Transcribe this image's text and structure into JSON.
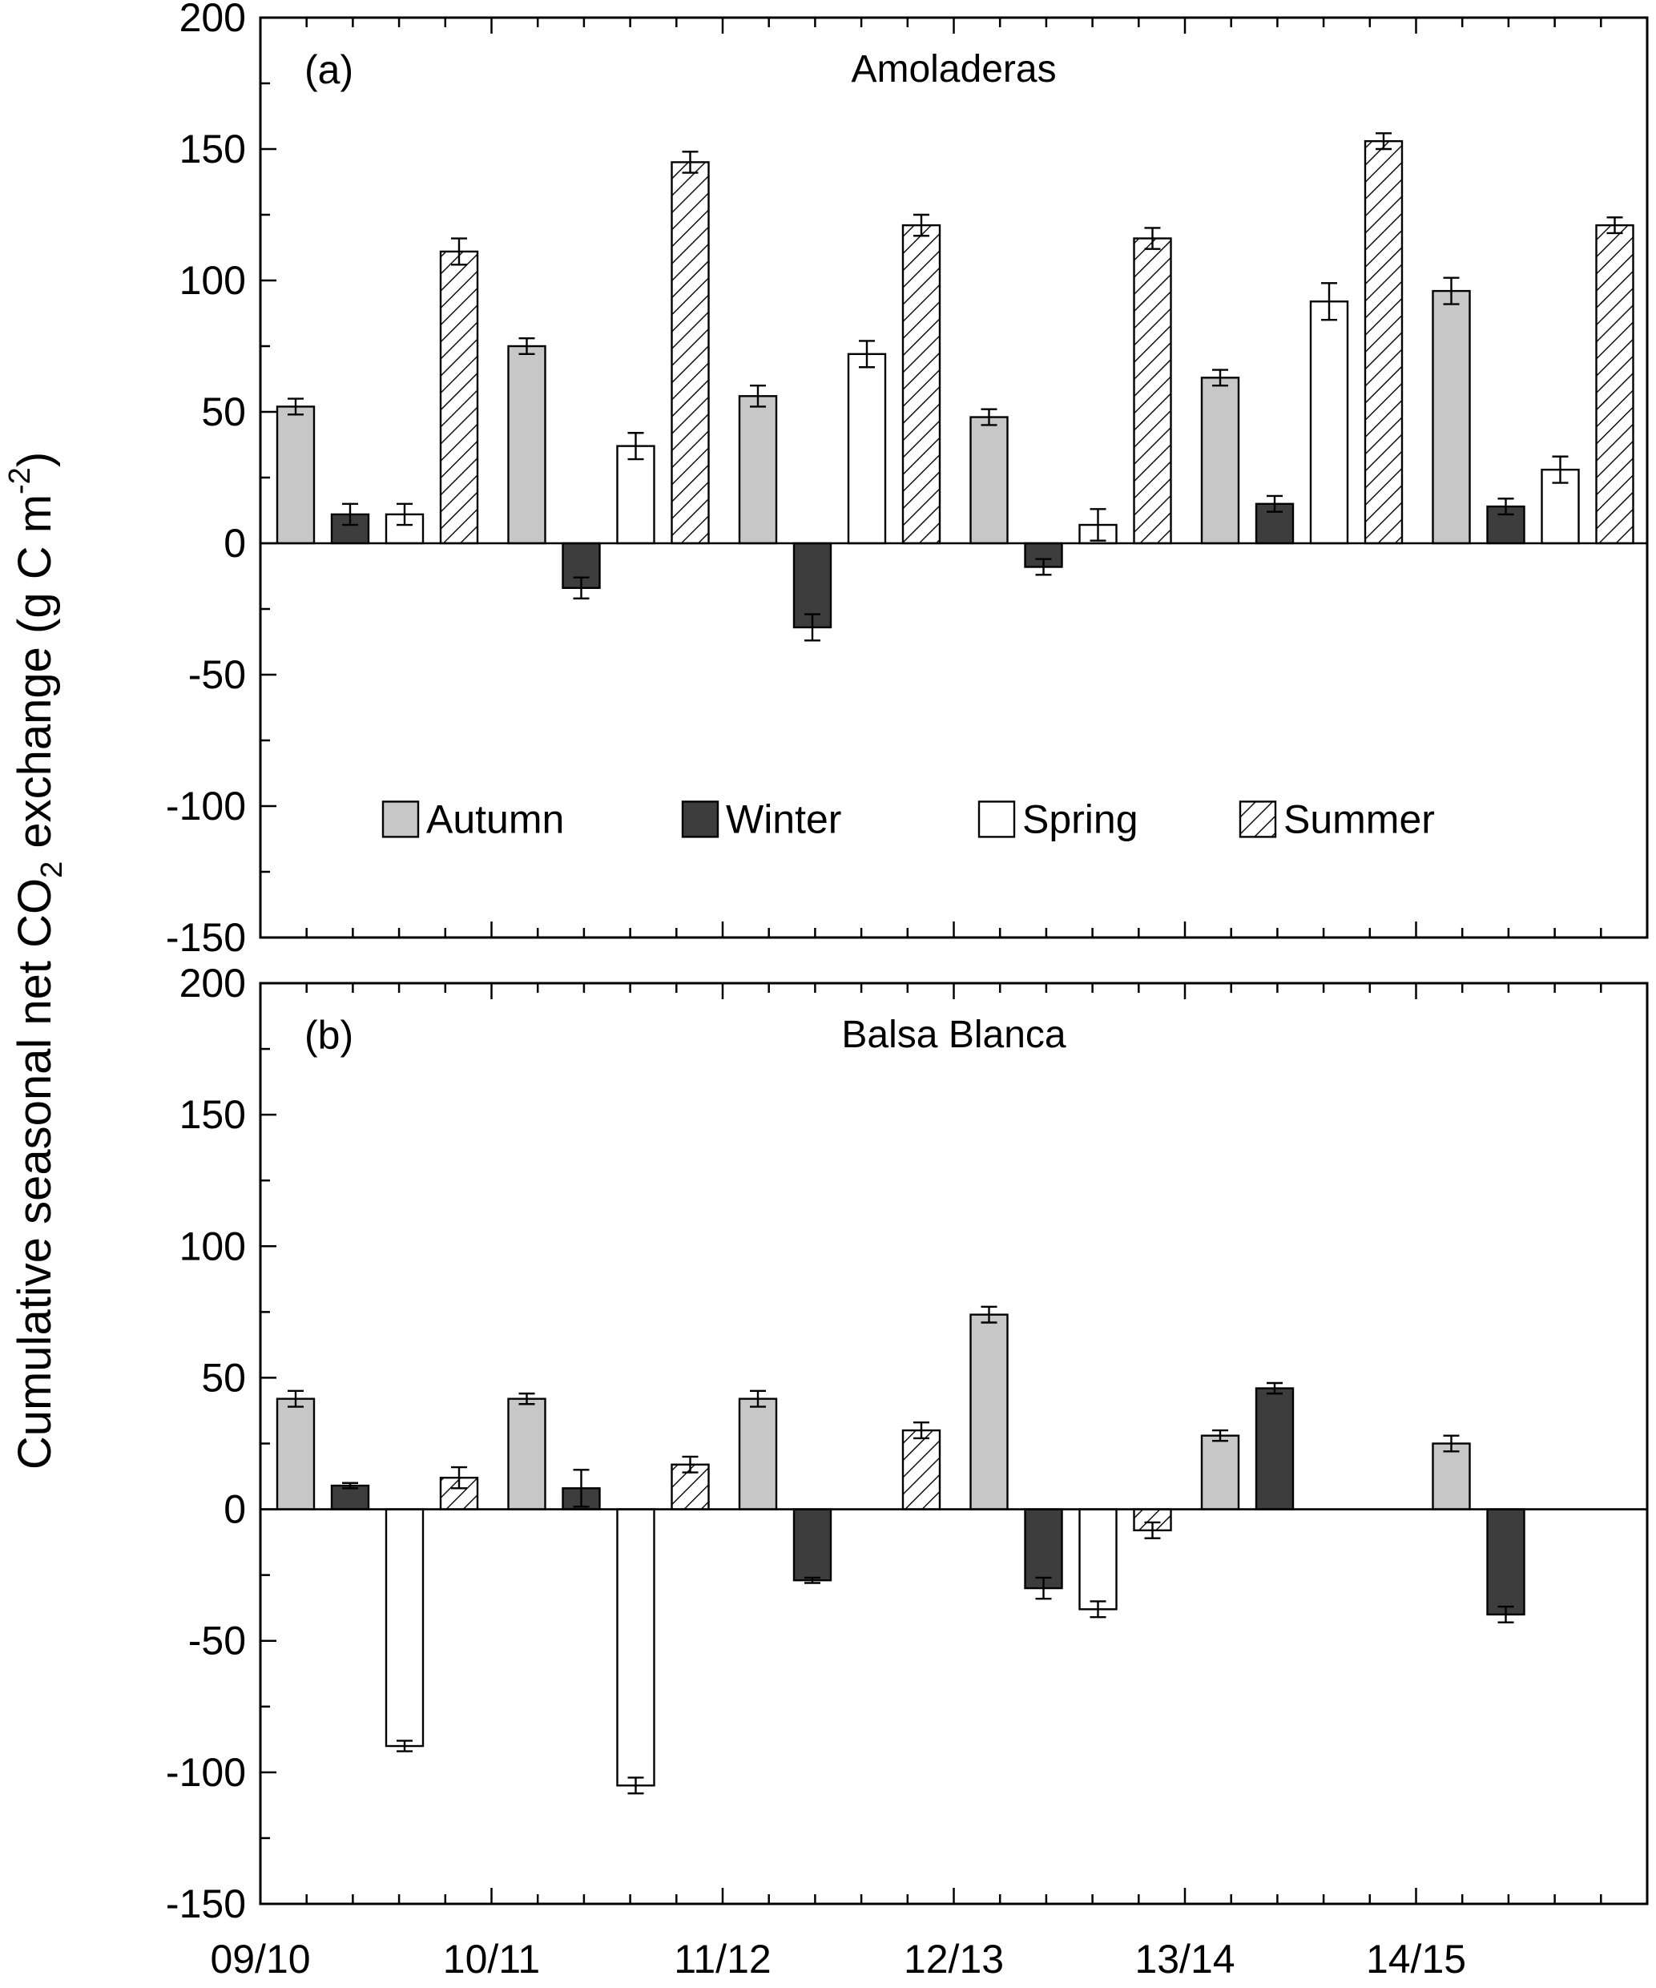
{
  "figure": {
    "background": "#ffffff",
    "y_axis_label": [
      {
        "t": "Cumulative seasonal net CO"
      },
      {
        "t": "2",
        "style": "sub"
      },
      {
        "t": " exchange (g C m"
      },
      {
        "t": "-2",
        "style": "sup"
      },
      {
        "t": ")"
      }
    ]
  },
  "legend": {
    "position": "inside-panel-a",
    "items": [
      {
        "label": "Autumn",
        "fill": "#c7c7c7",
        "pattern": "solid"
      },
      {
        "label": "Winter",
        "fill": "#3d3d3d",
        "pattern": "solid"
      },
      {
        "label": "Spring",
        "fill": "#ffffff",
        "pattern": "solid"
      },
      {
        "label": "Summer",
        "fill": "#ffffff",
        "pattern": "diagonal-hatch"
      }
    ]
  },
  "chart_data": [
    {
      "type": "bar",
      "panel_letter": "(a)",
      "title": "Amoladeras",
      "categories": [
        "09/10",
        "10/11",
        "11/12",
        "12/13",
        "13/14",
        "14/15"
      ],
      "xlabel": "",
      "ylabel": "Cumulative seasonal net CO2 exchange (g C m-2)",
      "ylim": [
        -150,
        200
      ],
      "yticks": [
        200,
        150,
        100,
        50,
        0,
        -50,
        -100,
        -150
      ],
      "grid": false,
      "legend_position": "inside-lower-left",
      "series": [
        {
          "name": "Autumn",
          "values": [
            52,
            75,
            56,
            48,
            63,
            96
          ],
          "errors": [
            3,
            3,
            4,
            3,
            3,
            5
          ]
        },
        {
          "name": "Winter",
          "values": [
            11,
            -17,
            -32,
            -9,
            15,
            14
          ],
          "errors": [
            4,
            4,
            5,
            3,
            3,
            3
          ]
        },
        {
          "name": "Spring",
          "values": [
            11,
            37,
            72,
            7,
            92,
            28
          ],
          "errors": [
            4,
            5,
            5,
            6,
            7,
            5
          ]
        },
        {
          "name": "Summer",
          "values": [
            111,
            145,
            121,
            116,
            153,
            121
          ],
          "errors": [
            5,
            4,
            4,
            4,
            3,
            3
          ]
        }
      ]
    },
    {
      "type": "bar",
      "panel_letter": "(b)",
      "title": "Balsa Blanca",
      "categories": [
        "09/10",
        "10/11",
        "11/12",
        "12/13",
        "13/14",
        "14/15"
      ],
      "xlabel": "",
      "ylabel": "Cumulative seasonal net CO2 exchange (g C m-2)",
      "ylim": [
        -150,
        200
      ],
      "yticks": [
        200,
        150,
        100,
        50,
        0,
        -50,
        -100,
        -150
      ],
      "grid": false,
      "legend_position": "none",
      "series": [
        {
          "name": "Autumn",
          "values": [
            42,
            42,
            42,
            74,
            28,
            25
          ],
          "errors": [
            3,
            2,
            3,
            3,
            2,
            3
          ]
        },
        {
          "name": "Winter",
          "values": [
            9,
            8,
            -27,
            -30,
            46,
            -40
          ],
          "errors": [
            1,
            7,
            1,
            4,
            2,
            3
          ]
        },
        {
          "name": "Spring",
          "values": [
            -90,
            -105,
            null,
            -38,
            null,
            null
          ],
          "errors": [
            2,
            3,
            null,
            3,
            null,
            null
          ]
        },
        {
          "name": "Summer",
          "values": [
            12,
            17,
            30,
            -8,
            null,
            null
          ],
          "errors": [
            4,
            3,
            3,
            3,
            null,
            null
          ]
        }
      ]
    }
  ]
}
